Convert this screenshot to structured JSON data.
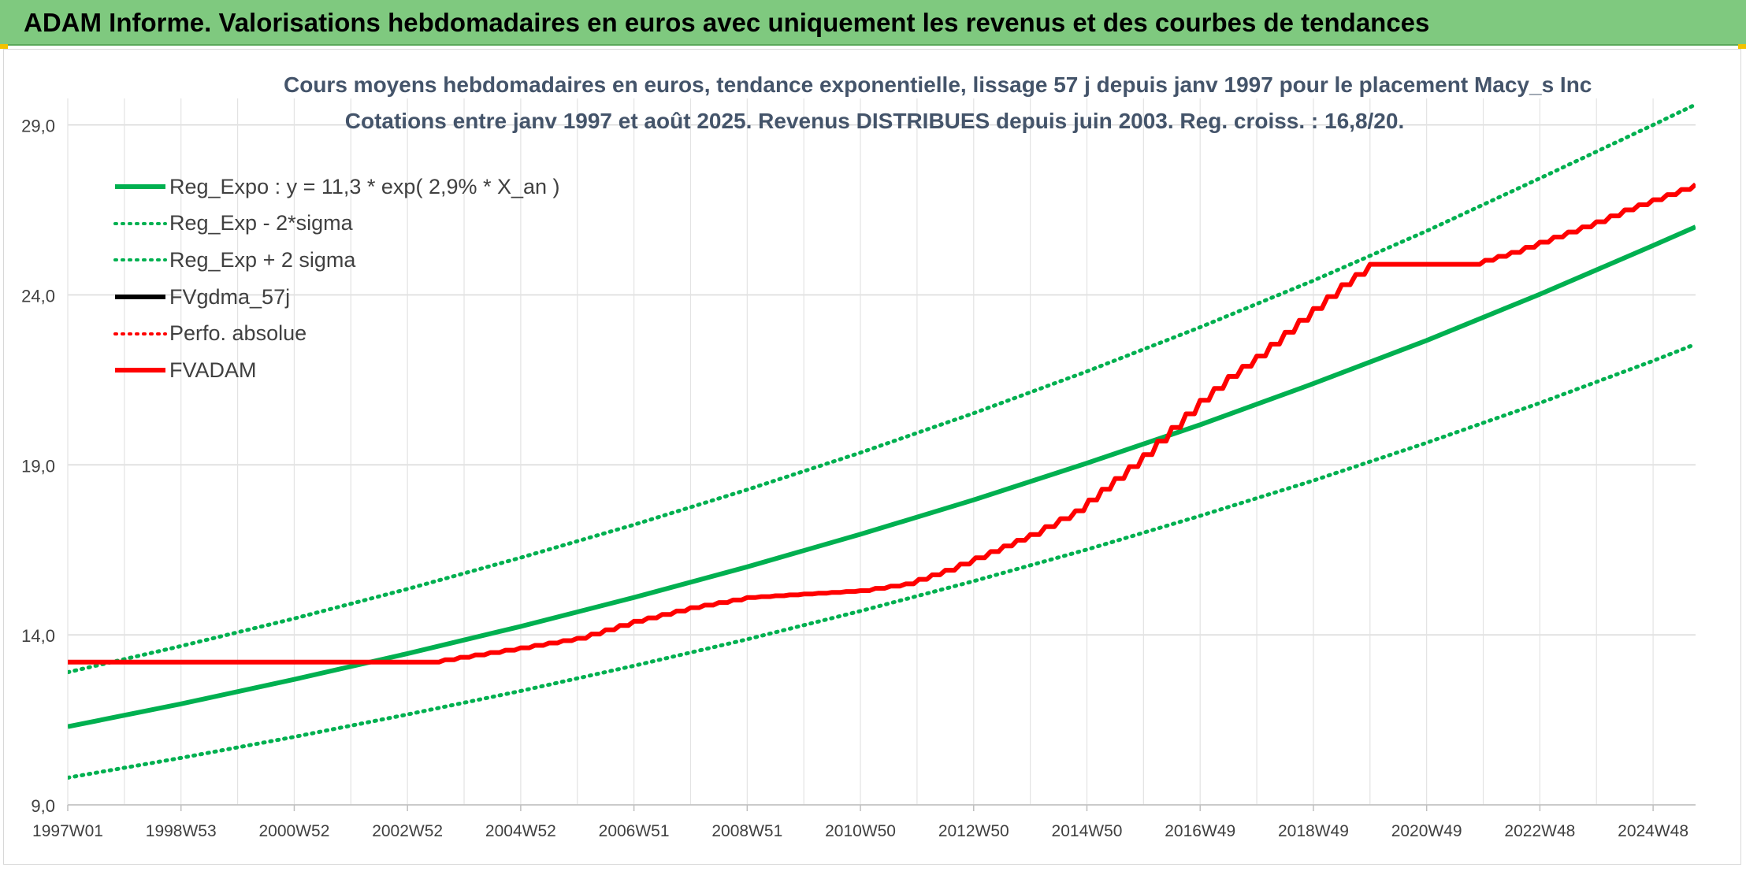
{
  "header": {
    "title": "ADAM Informe. Valorisations hebdomadaires en euros avec uniquement les revenus et des courbes de tendances"
  },
  "chart_data": {
    "type": "line",
    "title": "Cours moyens hebdomadaires en euros, tendance exponentielle, lissage 57 j depuis janv 1997 pour le placement Macy_s Inc",
    "subtitle": "Cotations entre janv 1997 et août 2025. Revenus DISTRIBUES depuis juin 2003. Reg. croiss. : 16,8/20.",
    "x_tick_labels": [
      "1997W01",
      "1998W53",
      "2000W52",
      "2002W52",
      "2004W52",
      "2006W51",
      "2008W51",
      "2010W50",
      "2012W50",
      "2014W50",
      "2016W49",
      "2018W49",
      "2020W49",
      "2022W48",
      "2024W48"
    ],
    "x_ticks_years": [
      1997.0,
      1999.0,
      2001.0,
      2003.0,
      2005.0,
      2007.0,
      2009.0,
      2011.0,
      2013.0,
      2015.0,
      2017.0,
      2019.0,
      2021.0,
      2023.0,
      2025.0
    ],
    "xlim": [
      1997.0,
      2025.75
    ],
    "ylim": [
      9.0,
      29.5
    ],
    "y_ticks": [
      9.0,
      14.0,
      19.0,
      24.0,
      29.0
    ],
    "y_tick_labels": [
      "9,0",
      "14,0",
      "19,0",
      "24,0",
      "29,0"
    ],
    "legend_position": "top-left",
    "grid": true,
    "series": [
      {
        "name": "Reg_Expo : y = 11,3 * exp( 2,9% *  X_an )",
        "color": "#00b050",
        "style": "solid",
        "width": 6,
        "x": [
          1997.0,
          1999.0,
          2001.0,
          2003.0,
          2005.0,
          2007.0,
          2009.0,
          2011.0,
          2013.0,
          2015.0,
          2017.0,
          2019.0,
          2021.0,
          2023.0,
          2025.0,
          2025.75
        ],
        "y": [
          11.3,
          11.97,
          12.69,
          13.45,
          14.25,
          15.1,
          16.0,
          16.96,
          17.97,
          19.05,
          20.18,
          21.39,
          22.66,
          24.02,
          25.45,
          26.0
        ]
      },
      {
        "name": "Reg_Exp - 2*sigma",
        "color": "#00b050",
        "style": "dotted",
        "width": 5,
        "x": [
          1997.0,
          1999.0,
          2001.0,
          2003.0,
          2005.0,
          2007.0,
          2009.0,
          2011.0,
          2013.0,
          2015.0,
          2017.0,
          2019.0,
          2021.0,
          2023.0,
          2025.0,
          2025.75
        ],
        "y": [
          9.8,
          10.38,
          11.0,
          11.66,
          12.35,
          13.09,
          13.87,
          14.7,
          15.58,
          16.51,
          17.5,
          18.54,
          19.65,
          20.82,
          22.06,
          22.55
        ]
      },
      {
        "name": "Reg_Exp + 2 sigma",
        "color": "#00b050",
        "style": "dotted",
        "width": 5,
        "x": [
          1997.0,
          1999.0,
          2001.0,
          2003.0,
          2005.0,
          2007.0,
          2009.0,
          2011.0,
          2013.0,
          2015.0,
          2017.0,
          2019.0,
          2021.0,
          2023.0,
          2025.0,
          2025.75
        ],
        "y": [
          12.9,
          13.67,
          14.48,
          15.35,
          16.27,
          17.24,
          18.27,
          19.36,
          20.52,
          21.75,
          23.05,
          24.42,
          25.88,
          27.43,
          29.0,
          29.6
        ]
      },
      {
        "name": "FVgdma_57j",
        "color": "#000000",
        "style": "solid",
        "width": 5,
        "x": [
          1997.0,
          2003.4,
          2005.0,
          2006.0,
          2007.0,
          2008.0,
          2009.0,
          2010.0,
          2011.0,
          2011.8,
          2012.5,
          2013.3,
          2014.0,
          2014.8,
          2015.5,
          2016.0,
          2016.5,
          2017.0,
          2017.5,
          2018.0,
          2018.5,
          2019.0,
          2019.5,
          2020.0,
          2020.6,
          2021.8,
          2022.5,
          2023.0,
          2023.5,
          2024.0,
          2024.5,
          2025.0,
          2025.75
        ],
        "y": [
          13.2,
          13.2,
          13.62,
          13.9,
          14.4,
          14.8,
          15.1,
          15.2,
          15.3,
          15.5,
          15.9,
          16.45,
          16.95,
          17.65,
          18.6,
          19.3,
          20.1,
          20.9,
          21.6,
          22.2,
          22.9,
          23.6,
          24.3,
          24.9,
          24.9,
          24.9,
          25.25,
          25.55,
          25.85,
          26.15,
          26.5,
          26.8,
          27.25
        ]
      },
      {
        "name": "Perfo. absolue",
        "color": "#ff0000",
        "style": "dotted",
        "width": 4,
        "x": [
          1997.0,
          2003.4,
          2005.0,
          2006.0,
          2007.0,
          2008.0,
          2009.0,
          2010.0,
          2011.0,
          2011.8,
          2012.5,
          2013.3,
          2014.0,
          2014.8,
          2015.5,
          2016.0,
          2016.5,
          2017.0,
          2017.5,
          2018.0,
          2018.5,
          2019.0,
          2019.5,
          2020.0,
          2020.6,
          2021.8,
          2022.5,
          2023.0,
          2023.5,
          2024.0,
          2024.5,
          2025.0,
          2025.75
        ],
        "y": [
          13.2,
          13.2,
          13.62,
          13.9,
          14.4,
          14.8,
          15.1,
          15.2,
          15.3,
          15.5,
          15.9,
          16.45,
          16.95,
          17.65,
          18.6,
          19.3,
          20.1,
          20.9,
          21.6,
          22.2,
          22.9,
          23.6,
          24.3,
          24.9,
          24.9,
          24.9,
          25.25,
          25.55,
          25.85,
          26.15,
          26.5,
          26.8,
          27.25
        ]
      },
      {
        "name": "FVADAM",
        "color": "#ff0000",
        "style": "solid",
        "width": 6,
        "x": [
          1997.0,
          2003.4,
          2005.0,
          2006.0,
          2007.0,
          2008.0,
          2009.0,
          2010.0,
          2011.0,
          2011.8,
          2012.5,
          2013.3,
          2014.0,
          2014.8,
          2015.5,
          2016.0,
          2016.5,
          2017.0,
          2017.5,
          2018.0,
          2018.5,
          2019.0,
          2019.5,
          2020.0,
          2020.6,
          2021.8,
          2022.5,
          2023.0,
          2023.5,
          2024.0,
          2024.5,
          2025.0,
          2025.75
        ],
        "y": [
          13.2,
          13.2,
          13.62,
          13.9,
          14.4,
          14.8,
          15.1,
          15.2,
          15.3,
          15.5,
          15.9,
          16.45,
          16.95,
          17.65,
          18.6,
          19.3,
          20.1,
          20.9,
          21.6,
          22.2,
          22.9,
          23.6,
          24.3,
          24.9,
          24.9,
          24.9,
          25.25,
          25.55,
          25.85,
          26.15,
          26.5,
          26.8,
          27.25
        ]
      }
    ]
  }
}
